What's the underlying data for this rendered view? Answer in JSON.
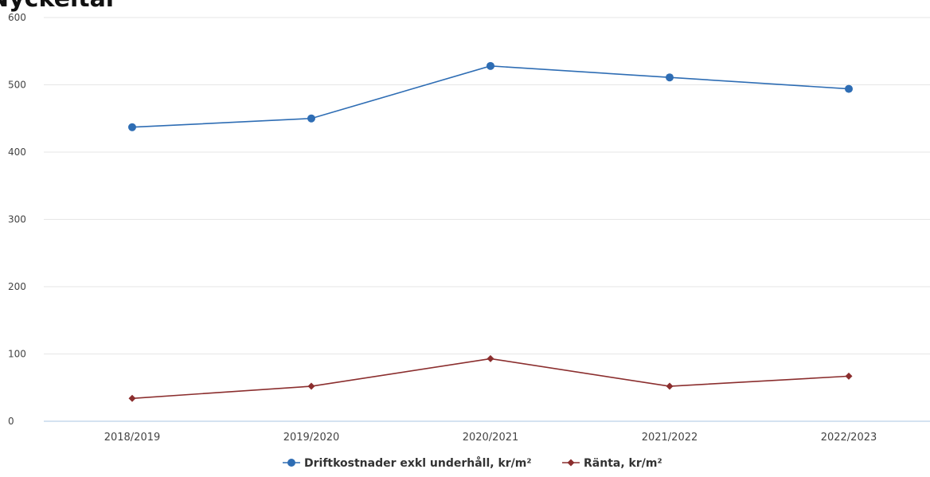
{
  "chart_data": {
    "type": "line",
    "title": "Nyckeltal",
    "categories": [
      "2018/2019",
      "2019/2020",
      "2020/2021",
      "2021/2022",
      "2022/2023"
    ],
    "series": [
      {
        "name": "Driftkostnader exkl underhåll, kr/m²",
        "values": [
          437,
          450,
          528,
          511,
          494
        ],
        "color": "#2e6db4",
        "marker": "circle"
      },
      {
        "name": "Ränta, kr/m²",
        "values": [
          34,
          52,
          93,
          52,
          67
        ],
        "color": "#8b2e2e",
        "marker": "diamond"
      }
    ],
    "yticks": [
      "0",
      "100",
      "200",
      "300",
      "400",
      "500",
      "600"
    ],
    "ylim": [
      0,
      600
    ],
    "xlabel": "",
    "ylabel": "",
    "grid": true,
    "legend": "bottom-center",
    "axis_color": "#a9c6e3"
  }
}
